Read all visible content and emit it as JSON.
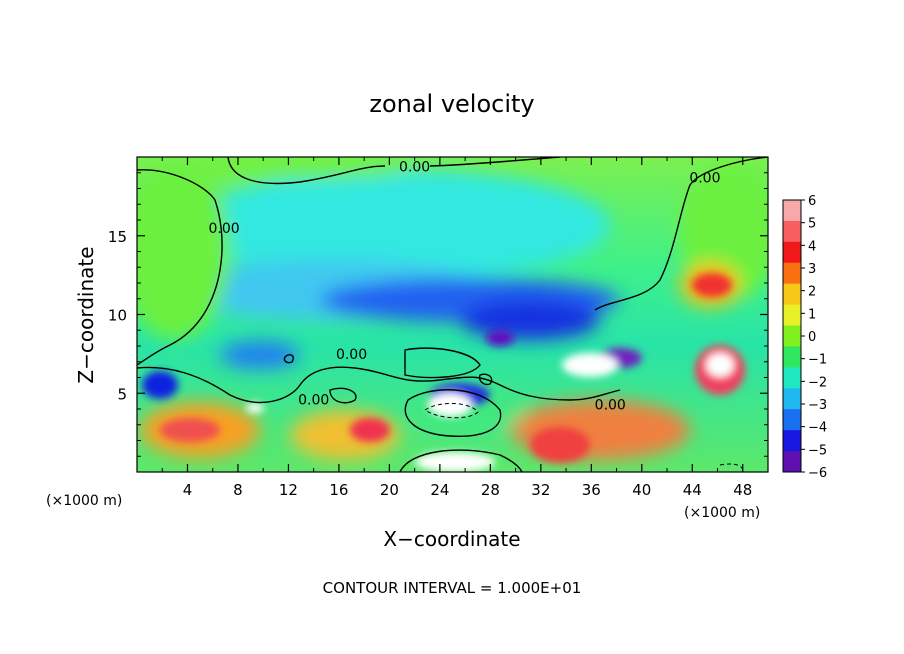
{
  "chart_data": {
    "type": "heatmap",
    "title": "zonal velocity",
    "xlabel": "X−coordinate",
    "ylabel": "Z−coordinate",
    "x_unit_left": "(×1000 m)",
    "x_unit_right": "(×1000 m)",
    "xlim": [
      0,
      50
    ],
    "ylim": [
      0,
      20
    ],
    "x_ticks": [
      4,
      8,
      12,
      16,
      20,
      24,
      28,
      32,
      36,
      40,
      44,
      48
    ],
    "x_tick_labels": [
      "4",
      "8",
      "12",
      "16",
      "20",
      "24",
      "28",
      "32",
      "36",
      "40",
      "44",
      "48"
    ],
    "y_ticks": [
      5,
      10,
      15
    ],
    "y_tick_labels": [
      "5",
      "10",
      "15"
    ],
    "colorbar": {
      "min": -6,
      "max": 6,
      "labels": [
        "6",
        "5",
        "4",
        "3",
        "2",
        "1",
        "0",
        "−1",
        "−2",
        "−3",
        "−4",
        "−5",
        "−6"
      ]
    },
    "contour_labels": [
      {
        "text": "0.00",
        "x": 22,
        "y": 19.4
      },
      {
        "text": "0.00",
        "x": 45,
        "y": 18.7
      },
      {
        "text": "0.00",
        "x": 6.9,
        "y": 15.5
      },
      {
        "text": "0.00",
        "x": 17,
        "y": 7.5
      },
      {
        "text": "0.00",
        "x": 14,
        "y": 4.6
      },
      {
        "text": "0.00",
        "x": 37.5,
        "y": 4.3
      }
    ],
    "footer": "CONTOUR INTERVAL = 1.000E+01",
    "grid": false,
    "legend": "colorbar-right"
  }
}
